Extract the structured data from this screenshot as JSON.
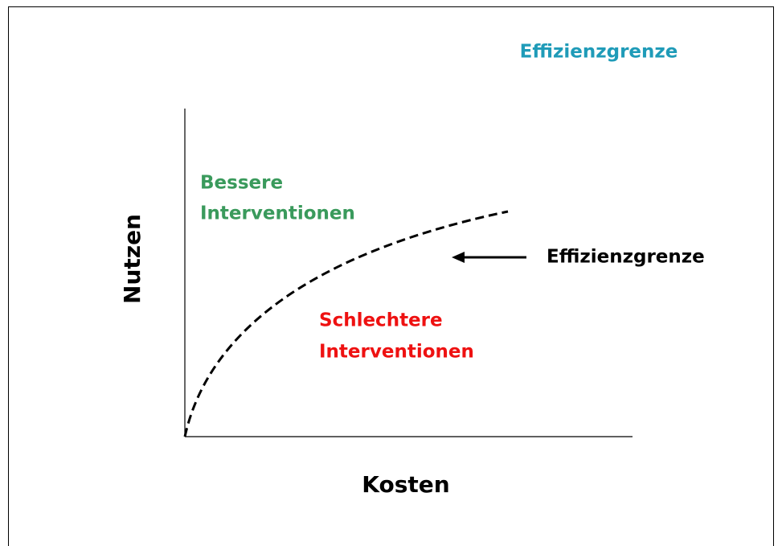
{
  "title": "Effizienzgrenze",
  "y_axis_label": "Nutzen",
  "x_axis_label": "Kosten",
  "better_region": [
    "Bessere",
    "Interventionen"
  ],
  "worse_region": [
    "Schlechtere",
    "Interventionen"
  ],
  "curve_label": "Effizienzgrenze"
}
